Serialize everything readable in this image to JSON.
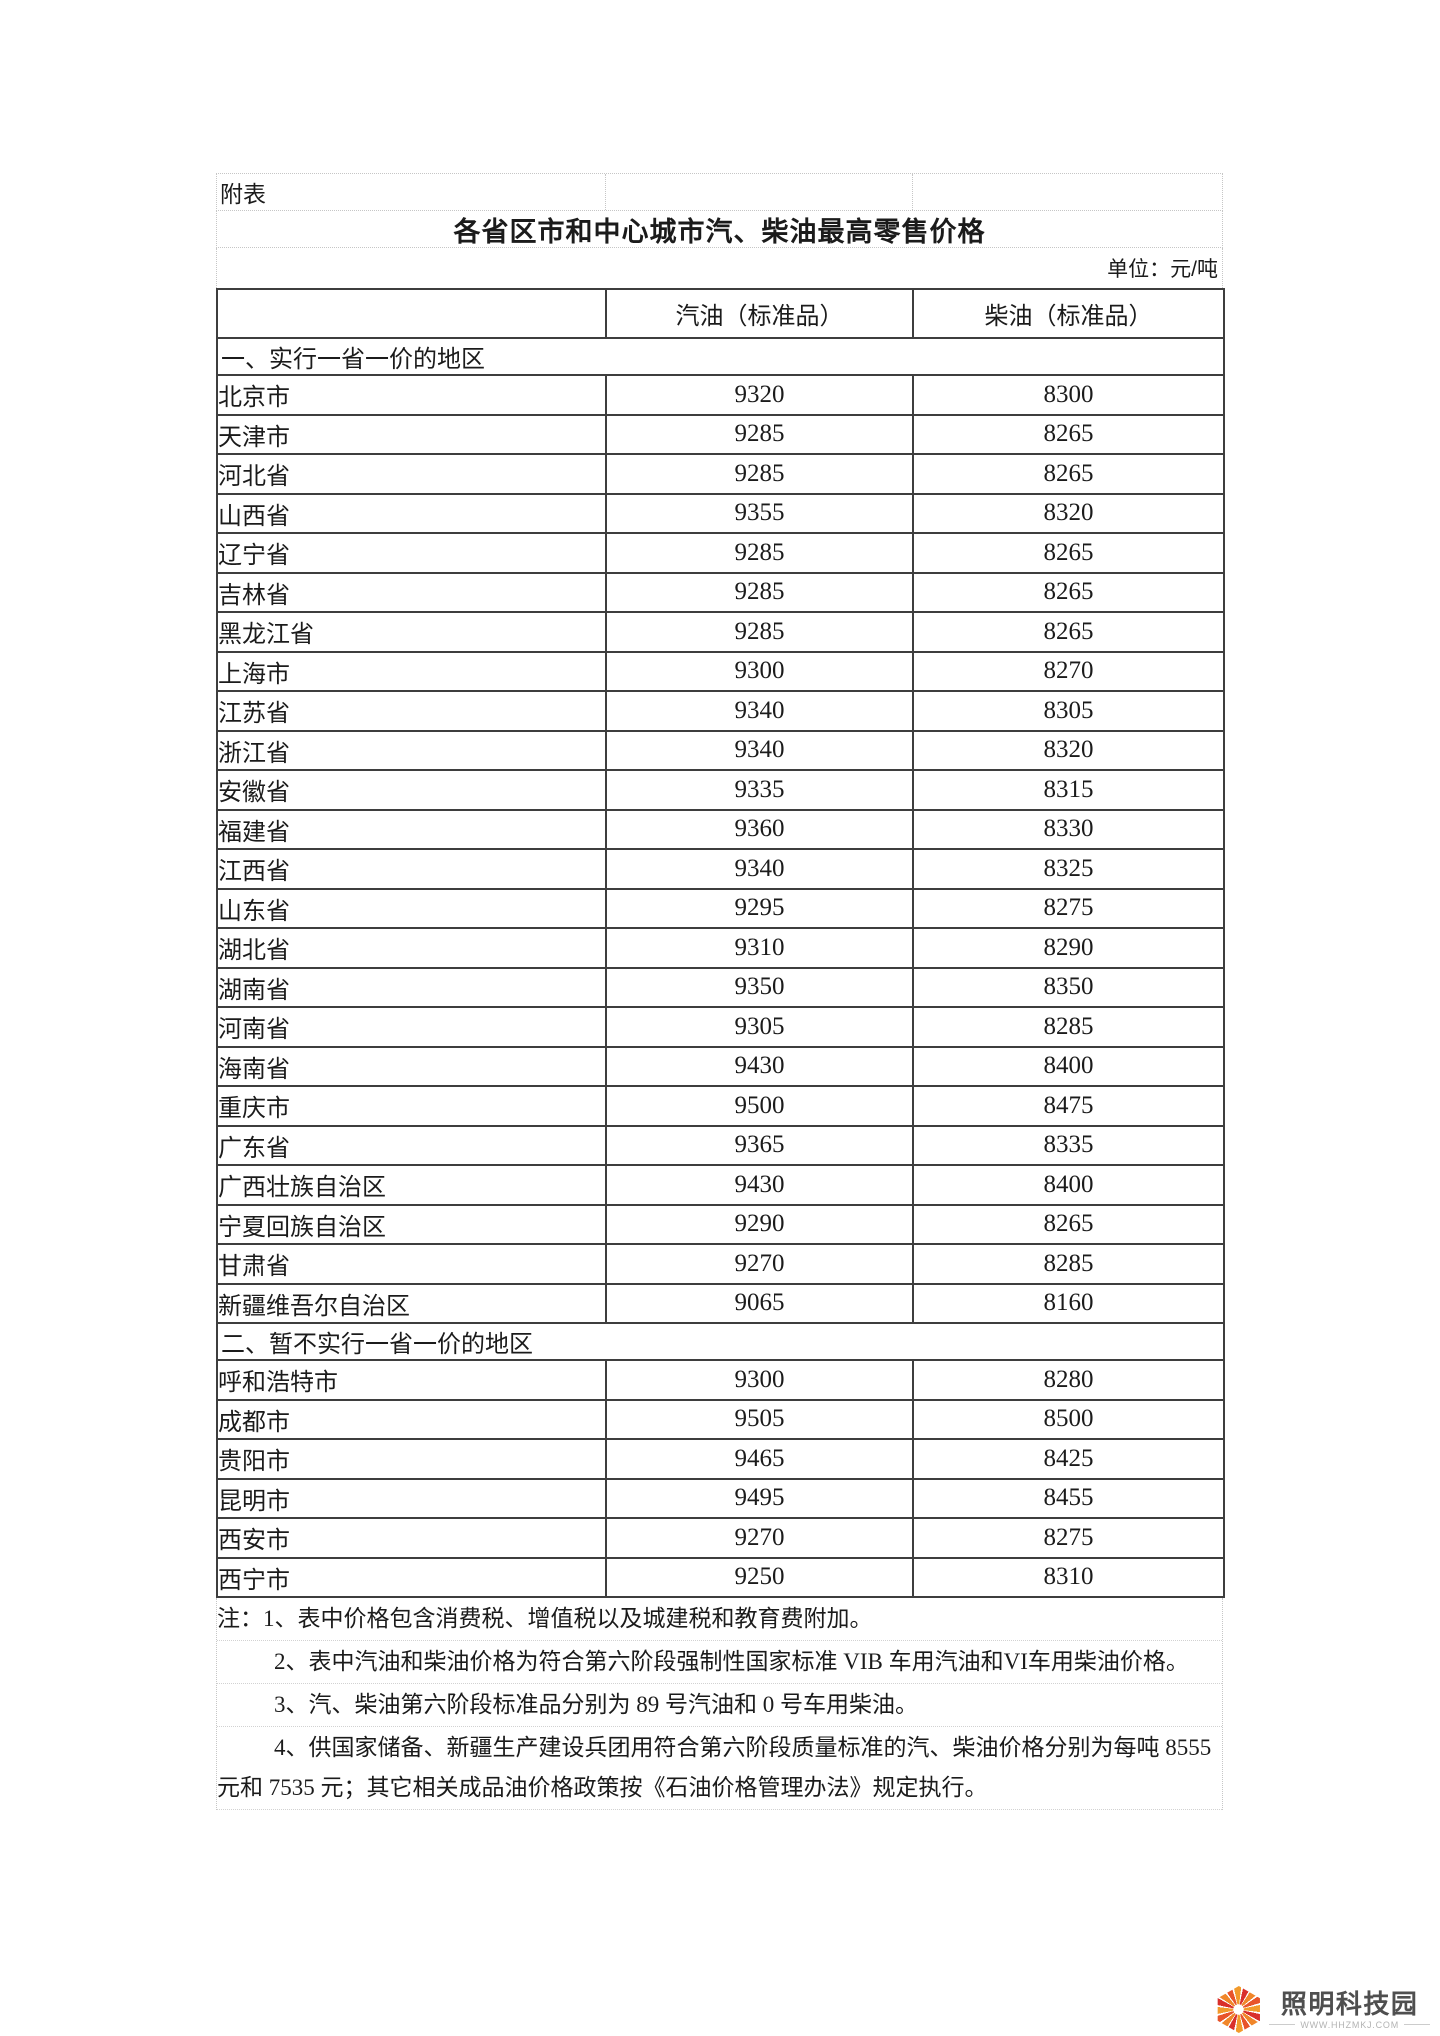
{
  "page": {
    "appendix_label": "附表",
    "title": "各省区市和中心城市汽、柴油最高零售价格",
    "unit_label": "单位：元/吨"
  },
  "table": {
    "columns": [
      "",
      "汽油（标准品）",
      "柴油（标准品）"
    ],
    "sections": [
      {
        "header": "一、实行一省一价的地区",
        "rows": [
          [
            "北京市",
            "9320",
            "8300"
          ],
          [
            "天津市",
            "9285",
            "8265"
          ],
          [
            "河北省",
            "9285",
            "8265"
          ],
          [
            "山西省",
            "9355",
            "8320"
          ],
          [
            "辽宁省",
            "9285",
            "8265"
          ],
          [
            "吉林省",
            "9285",
            "8265"
          ],
          [
            "黑龙江省",
            "9285",
            "8265"
          ],
          [
            "上海市",
            "9300",
            "8270"
          ],
          [
            "江苏省",
            "9340",
            "8305"
          ],
          [
            "浙江省",
            "9340",
            "8320"
          ],
          [
            "安徽省",
            "9335",
            "8315"
          ],
          [
            "福建省",
            "9360",
            "8330"
          ],
          [
            "江西省",
            "9340",
            "8325"
          ],
          [
            "山东省",
            "9295",
            "8275"
          ],
          [
            "湖北省",
            "9310",
            "8290"
          ],
          [
            "湖南省",
            "9350",
            "8350"
          ],
          [
            "河南省",
            "9305",
            "8285"
          ],
          [
            "海南省",
            "9430",
            "8400"
          ],
          [
            "重庆市",
            "9500",
            "8475"
          ],
          [
            "广东省",
            "9365",
            "8335"
          ],
          [
            "广西壮族自治区",
            "9430",
            "8400"
          ],
          [
            "宁夏回族自治区",
            "9290",
            "8265"
          ],
          [
            "甘肃省",
            "9270",
            "8285"
          ],
          [
            "新疆维吾尔自治区",
            "9065",
            "8160"
          ]
        ]
      },
      {
        "header": "二、暂不实行一省一价的地区",
        "rows": [
          [
            "呼和浩特市",
            "9300",
            "8280"
          ],
          [
            "成都市",
            "9505",
            "8500"
          ],
          [
            "贵阳市",
            "9465",
            "8425"
          ],
          [
            "昆明市",
            "9495",
            "8455"
          ],
          [
            "西安市",
            "9270",
            "8275"
          ],
          [
            "西宁市",
            "9250",
            "8310"
          ]
        ]
      }
    ]
  },
  "notes": [
    {
      "text": "注：1、表中价格包含消费税、增值税以及城建税和教育费附加。",
      "indent": false
    },
    {
      "text": "2、表中汽油和柴油价格为符合第六阶段强制性国家标准 VIB 车用汽油和VI车用柴油价格。",
      "indent": true
    },
    {
      "text": "3、汽、柴油第六阶段标准品分别为 89 号汽油和 0 号车用柴油。",
      "indent": true
    },
    {
      "text": "4、供国家储备、新疆生产建设兵团用符合第六阶段质量标准的汽、柴油价格分别为每吨 8555 元和 7535 元；其它相关成品油价格政策按《石油价格管理办法》规定执行。",
      "indent": true
    }
  ],
  "watermark": {
    "name": "照明科技园",
    "url": "WWW.HHZMKJ.COM"
  },
  "colors": {
    "table_border": "#3e3e3e",
    "dotted_border": "#c6c6c6",
    "logo_orange": "#f0862a",
    "logo_red": "#d9302c",
    "watermark_text": "#4f4f4f",
    "watermark_url": "#b3b3b3"
  }
}
